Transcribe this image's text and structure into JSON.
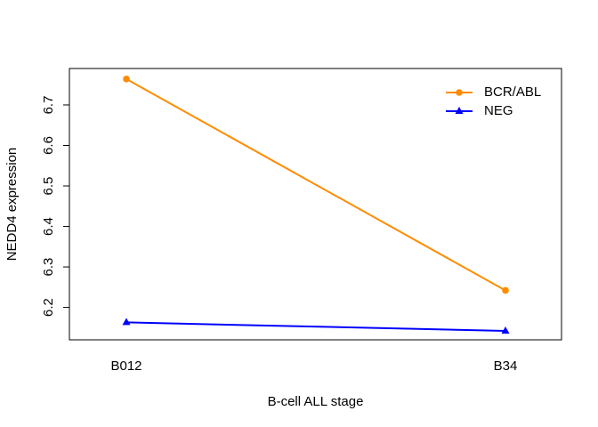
{
  "chart_data": {
    "type": "line",
    "title": "",
    "xlabel": "B-cell ALL stage",
    "ylabel": "NEDD4 expression",
    "categories": [
      "B012",
      "B34"
    ],
    "ylim": [
      6.12,
      6.79
    ],
    "yticks": [
      6.2,
      6.3,
      6.4,
      6.5,
      6.6,
      6.7
    ],
    "grid": false,
    "legend_position": "top-right",
    "series": [
      {
        "name": "BCR/ABL",
        "values": [
          6.764,
          6.242
        ],
        "color": "#FF8C00",
        "marker": "circle"
      },
      {
        "name": "NEG",
        "values": [
          6.163,
          6.142
        ],
        "color": "#0000FF",
        "marker": "triangle"
      }
    ]
  }
}
